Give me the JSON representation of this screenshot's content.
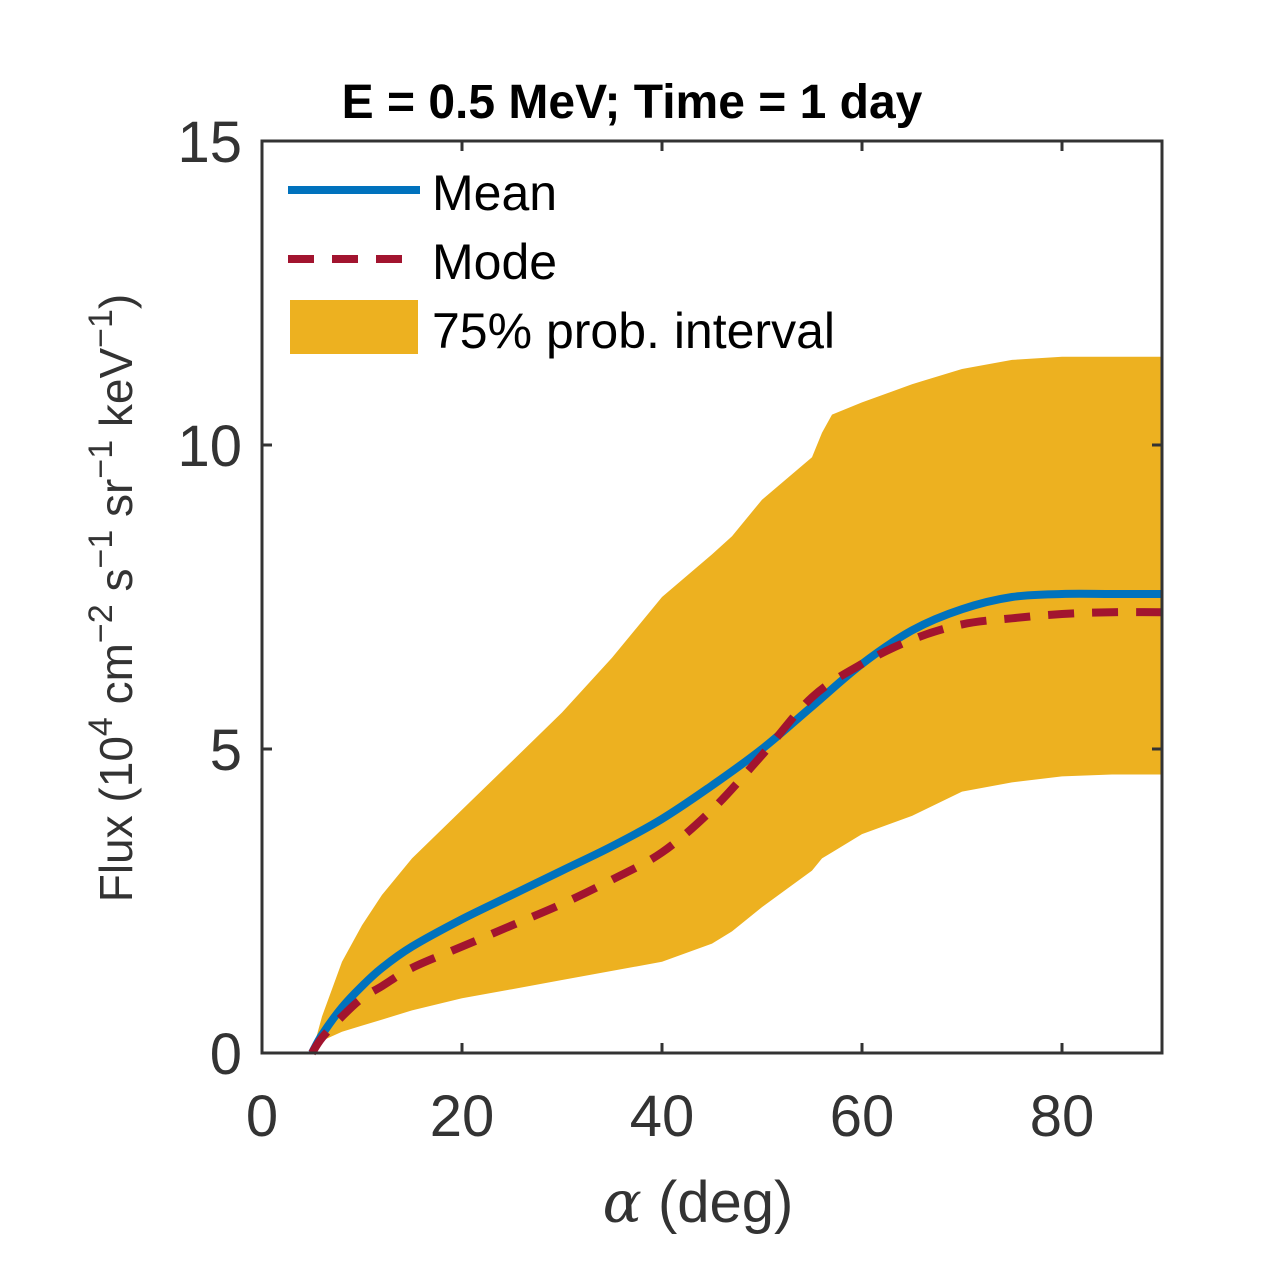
{
  "chart_data": {
    "type": "line",
    "title": "E = 0.5 MeV; Time = 1 day",
    "xlabel_symbol": "α",
    "xlabel_rest": " (deg)",
    "ylabel": {
      "prefix": "Flux (10",
      "exp4": "4",
      "cm": " cm",
      "expm2": "−2",
      "s": " s",
      "expm1a": "−1",
      "sr": " sr",
      "expm1b": "−1",
      "kev": " keV",
      "expm1c": "−1",
      "suffix": ")"
    },
    "xlim": [
      0,
      90
    ],
    "ylim": [
      0,
      15
    ],
    "xticks": [
      0,
      20,
      40,
      60,
      80
    ],
    "yticks": [
      0,
      5,
      10,
      15
    ],
    "xtick_labels": [
      "0",
      "20",
      "40",
      "60",
      "80"
    ],
    "ytick_labels": [
      "0",
      "5",
      "10",
      "15"
    ],
    "legend_position": "top-left",
    "colors": {
      "mean": "#0072BD",
      "mode": "#A2142F",
      "band": "#EDB120",
      "axes": "#333333"
    },
    "series": [
      {
        "name": "Mean",
        "style": "solid",
        "x": [
          5,
          6,
          8,
          10,
          12,
          15,
          20,
          25,
          30,
          35,
          40,
          45,
          50,
          55,
          60,
          65,
          70,
          75,
          80,
          85,
          90
        ],
        "y": [
          0,
          0.3,
          0.75,
          1.1,
          1.4,
          1.75,
          2.2,
          2.6,
          3.0,
          3.4,
          3.85,
          4.4,
          5.0,
          5.7,
          6.4,
          6.95,
          7.3,
          7.5,
          7.55,
          7.55,
          7.55
        ]
      },
      {
        "name": "Mode",
        "style": "dashed",
        "x": [
          5,
          6,
          8,
          10,
          12,
          15,
          20,
          25,
          30,
          35,
          40,
          45,
          50,
          55,
          60,
          65,
          70,
          75,
          80,
          85,
          90
        ],
        "y": [
          0,
          0.25,
          0.6,
          0.9,
          1.1,
          1.4,
          1.75,
          2.1,
          2.45,
          2.85,
          3.3,
          4.0,
          4.9,
          5.85,
          6.4,
          6.8,
          7.05,
          7.15,
          7.22,
          7.25,
          7.25
        ]
      }
    ],
    "band": {
      "name": "75% prob. interval",
      "x": [
        5,
        6,
        8,
        10,
        12,
        15,
        20,
        25,
        30,
        35,
        40,
        45,
        47,
        50,
        55,
        56,
        57,
        60,
        65,
        70,
        75,
        80,
        85,
        90
      ],
      "upper": [
        0,
        0.6,
        1.5,
        2.1,
        2.6,
        3.2,
        4.0,
        4.8,
        5.6,
        6.5,
        7.5,
        8.2,
        8.5,
        9.1,
        9.8,
        10.2,
        10.5,
        10.7,
        11.0,
        11.25,
        11.4,
        11.45,
        11.45,
        11.45
      ],
      "lower": [
        0,
        0.2,
        0.35,
        0.45,
        0.55,
        0.7,
        0.9,
        1.05,
        1.2,
        1.35,
        1.5,
        1.8,
        2.0,
        2.4,
        3.0,
        3.2,
        3.3,
        3.6,
        3.9,
        4.3,
        4.45,
        4.55,
        4.58,
        4.58
      ]
    }
  }
}
